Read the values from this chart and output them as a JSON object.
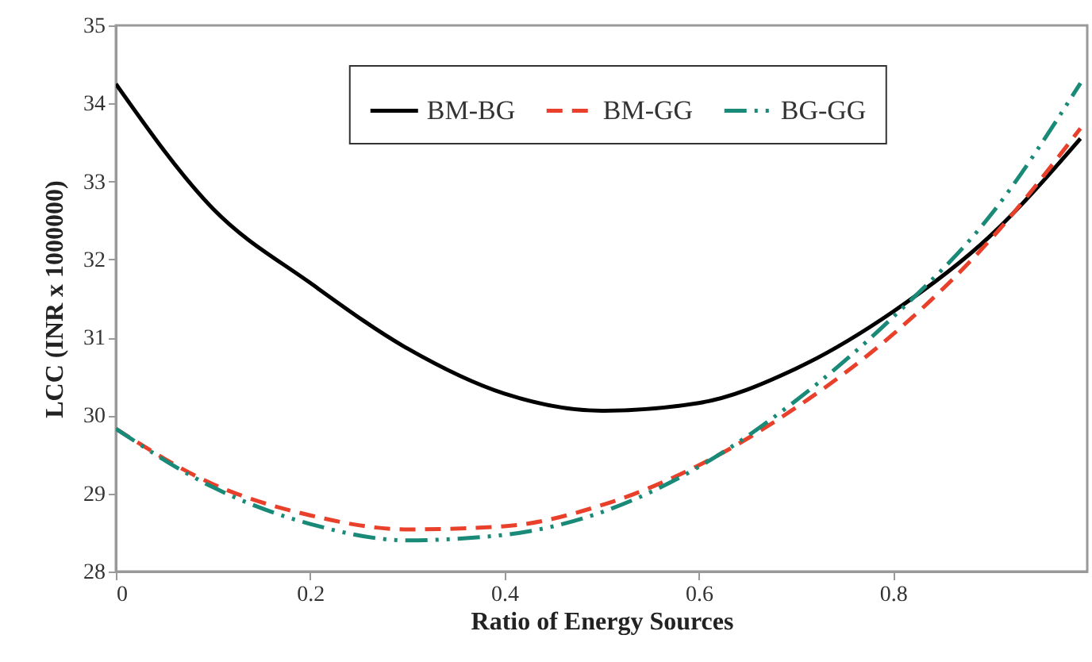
{
  "chart_data": {
    "type": "line",
    "xlabel": "Ratio of Energy Sources",
    "ylabel": "LCC (INR x 1000000)",
    "x": [
      0,
      0.1,
      0.2,
      0.3,
      0.4,
      0.5,
      0.6,
      0.7,
      0.8,
      0.9,
      0.993
    ],
    "series": [
      {
        "name": "BM-BG",
        "color": "#000000",
        "line_style": "solid",
        "values": [
          34.25,
          32.65,
          31.7,
          30.86,
          30.28,
          30.06,
          30.16,
          30.6,
          31.33,
          32.3,
          33.55
        ]
      },
      {
        "name": "BM-GG",
        "color": "#e8402a",
        "line_style": "dashed",
        "values": [
          29.83,
          29.12,
          28.72,
          28.54,
          28.58,
          28.85,
          29.36,
          30.1,
          31.04,
          32.25,
          33.68
        ]
      },
      {
        "name": "BG-GG",
        "color": "#1a8a78",
        "line_style": "dashdot",
        "values": [
          29.83,
          29.08,
          28.61,
          28.4,
          28.47,
          28.76,
          29.34,
          30.19,
          31.26,
          32.56,
          34.26
        ]
      }
    ],
    "xlim": [
      0,
      1
    ],
    "xticks": [
      0,
      0.2,
      0.4,
      0.6,
      0.8
    ],
    "ylim": [
      28,
      35
    ],
    "yticks": [
      28,
      29,
      30,
      31,
      32,
      33,
      34,
      35
    ],
    "grid": false,
    "legend": "top",
    "marker": "none"
  }
}
